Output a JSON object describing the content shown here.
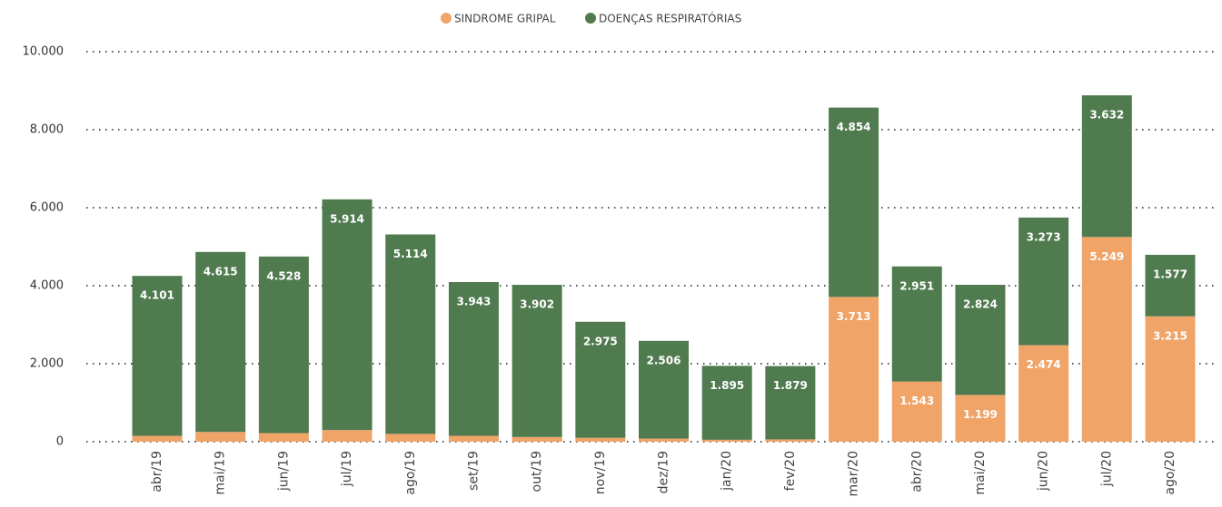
{
  "chart_data": {
    "type": "stacked_bar",
    "categories": [
      "abr/19",
      "mai/19",
      "jun/19",
      "jul/19",
      "ago/19",
      "set/19",
      "out/19",
      "nov/19",
      "dez/19",
      "jan/20",
      "fev/20",
      "mar/20",
      "abr/20",
      "mai/20",
      "jun/20",
      "jul/20",
      "ago/20"
    ],
    "series": [
      {
        "name": "SINDROME GRIPAL",
        "color": "#f0a468",
        "values": [
          150,
          250,
          220,
          300,
          200,
          150,
          120,
          100,
          80,
          50,
          60,
          3713,
          1543,
          1199,
          2474,
          5249,
          3215
        ],
        "value_labels": [
          null,
          null,
          null,
          null,
          null,
          null,
          null,
          null,
          null,
          null,
          null,
          "3.713",
          "1.543",
          "1.199",
          "2.474",
          "5.249",
          "3.215"
        ]
      },
      {
        "name": "DOENÇAS RESPIRATÓRIAS",
        "color": "#4f7b4f",
        "values": [
          4101,
          4615,
          4528,
          5914,
          5114,
          3943,
          3902,
          2975,
          2506,
          1895,
          1879,
          4854,
          2951,
          2824,
          3273,
          3632,
          1577
        ],
        "value_labels": [
          "4.101",
          "4.615",
          "4.528",
          "5.914",
          "5.114",
          "3.943",
          "3.902",
          "2.975",
          "2.506",
          "1.895",
          "1.879",
          "4.854",
          "2.951",
          "2.824",
          "3.273",
          "3.632",
          "1.577"
        ]
      }
    ],
    "ylim": [
      0,
      10000
    ],
    "yticks": [
      0,
      {
        "value": 2000,
        "label": "2.000"
      },
      {
        "value": 4000,
        "label": "4.000"
      },
      {
        "value": 6000,
        "label": "6.000"
      },
      {
        "value": 8000,
        "label": "8.000"
      },
      {
        "value": 10000,
        "label": "10.000"
      }
    ],
    "grid": true,
    "legend": "top"
  }
}
